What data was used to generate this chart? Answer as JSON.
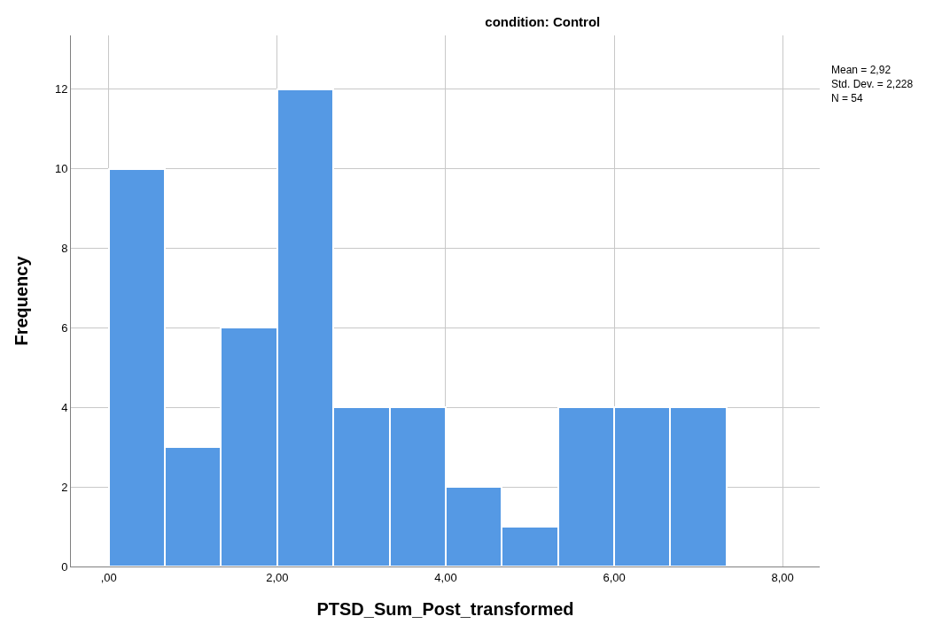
{
  "chart_data": {
    "type": "histogram",
    "title": "condition: Control",
    "xlabel": "PTSD_Sum_Post_transformed",
    "ylabel": "Frequency",
    "bins": [
      0,
      0.667,
      1.333,
      2,
      2.667,
      3.333,
      4,
      4.667,
      5.333,
      6,
      6.667,
      7.333
    ],
    "values": [
      10,
      3,
      6,
      12,
      4,
      4,
      2,
      1,
      4,
      4,
      4
    ],
    "color": "#5599e4",
    "xlim": [
      -0.45,
      8.44
    ],
    "ylim": [
      0,
      13.35
    ],
    "xticks": [
      {
        "value": 0,
        "label": ",00"
      },
      {
        "value": 2,
        "label": "2,00"
      },
      {
        "value": 4,
        "label": "4,00"
      },
      {
        "value": 6,
        "label": "6,00"
      },
      {
        "value": 8,
        "label": "8,00"
      }
    ],
    "yticks": [
      0,
      2,
      4,
      6,
      8,
      10,
      12
    ],
    "grid": true,
    "annotations": [
      "Mean = 2,92",
      "Std. Dev. = 2,228",
      "N = 54"
    ]
  }
}
